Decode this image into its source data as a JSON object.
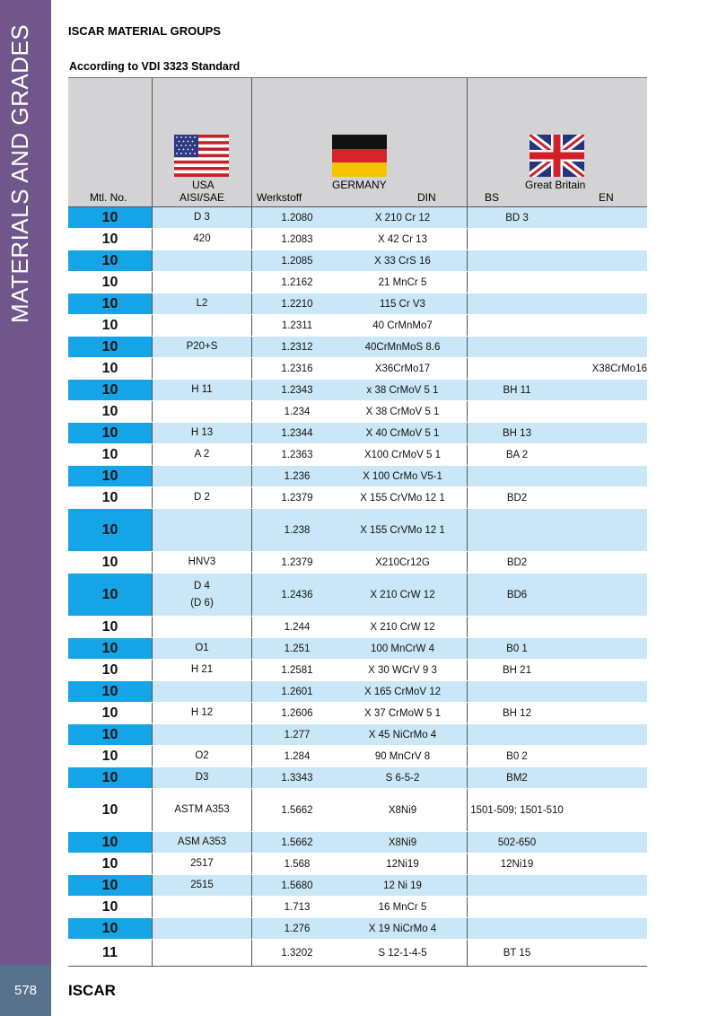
{
  "sidebar": {
    "title": "MATERIALS AND GRADES"
  },
  "page_number": "578",
  "footer_brand": "ISCAR",
  "heading": "ISCAR MATERIAL GROUPS",
  "subheading": "According to VDI 3323 Standard",
  "header": {
    "mtl": "Mtl. No.",
    "usa_country": "USA",
    "usa_std": "AISI/SAE",
    "germany_country": "GERMANY",
    "werkstoff": "Werkstoff",
    "din": "DIN",
    "gb_country": "Great Britain",
    "bs": "BS",
    "en": "EN"
  },
  "flags": {
    "usa": "us-flag-icon",
    "germany": "germany-flag-icon",
    "gb": "gb-flag-icon"
  },
  "colors": {
    "mtl_blue": "#15a4e6",
    "row_blue": "#c9e7f6",
    "header_gray": "#d3d3d5",
    "sidebar": "#70568b"
  },
  "rows": [
    {
      "mtl": "10",
      "usa": "D 3",
      "usa2": "",
      "werkstoff": "1.2080",
      "din": "X 210 Cr 12",
      "bs": "BD 3",
      "en": ""
    },
    {
      "mtl": "10",
      "usa": "420",
      "usa2": "",
      "werkstoff": "1.2083",
      "din": "X 42 Cr 13",
      "bs": "",
      "en": ""
    },
    {
      "mtl": "10",
      "usa": "",
      "usa2": "",
      "werkstoff": "1.2085",
      "din": "X 33 CrS 16",
      "bs": "",
      "en": ""
    },
    {
      "mtl": "10",
      "usa": "",
      "usa2": "",
      "werkstoff": "1.2162",
      "din": "21 MnCr 5",
      "bs": "",
      "en": ""
    },
    {
      "mtl": "10",
      "usa": "L2",
      "usa2": "",
      "werkstoff": "1.2210",
      "din": "115 Cr V3",
      "bs": "",
      "en": ""
    },
    {
      "mtl": "10",
      "usa": "",
      "usa2": "",
      "werkstoff": "1.2311",
      "din": "40 CrMnMo7",
      "bs": "",
      "en": ""
    },
    {
      "mtl": "10",
      "usa": "P20+S",
      "usa2": "",
      "werkstoff": "1.2312",
      "din": "40CrMnMoS 8.6",
      "bs": "",
      "en": ""
    },
    {
      "mtl": "10",
      "usa": "",
      "usa2": "",
      "werkstoff": "1.2316",
      "din": "X36CrMo17",
      "bs": "",
      "en": "X38CrMo16"
    },
    {
      "mtl": "10",
      "usa": "H 11",
      "usa2": "",
      "werkstoff": "1.2343",
      "din": "x 38 CrMoV 5 1",
      "bs": "BH 11",
      "en": ""
    },
    {
      "mtl": "10",
      "usa": "",
      "usa2": "",
      "werkstoff": "1.234",
      "din": "X 38 CrMoV 5 1",
      "bs": "",
      "en": ""
    },
    {
      "mtl": "10",
      "usa": "H 13",
      "usa2": "",
      "werkstoff": "1.2344",
      "din": "X 40 CrMoV 5 1",
      "bs": "BH 13",
      "en": ""
    },
    {
      "mtl": "10",
      "usa": "A 2",
      "usa2": "",
      "werkstoff": "1.2363",
      "din": "X100 CrMoV 5 1",
      "bs": "BA 2",
      "en": ""
    },
    {
      "mtl": "10",
      "usa": "",
      "usa2": "",
      "werkstoff": "1.236",
      "din": "X 100 CrMo V5-1",
      "bs": "",
      "en": ""
    },
    {
      "mtl": "10",
      "usa": "D 2",
      "usa2": "",
      "werkstoff": "1.2379",
      "din": "X 155 CrVMo 12 1",
      "bs": "BD2",
      "en": ""
    },
    {
      "mtl": "10",
      "usa": "",
      "usa2": "",
      "werkstoff": "1.238",
      "din": "X 155 CrVMo 12 1",
      "bs": "",
      "en": ""
    },
    {
      "mtl": "10",
      "usa": "HNV3",
      "usa2": "",
      "werkstoff": "1.2379",
      "din": "X210Cr12G",
      "bs": "BD2",
      "en": ""
    },
    {
      "mtl": "10",
      "usa": "D 4",
      "usa2": "(D 6)",
      "werkstoff": "1.2436",
      "din": "X 210  CrW  12",
      "bs": "BD6",
      "en": ""
    },
    {
      "mtl": "10",
      "usa": "",
      "usa2": "",
      "werkstoff": "1.244",
      "din": "X 210  CrW  12",
      "bs": "",
      "en": ""
    },
    {
      "mtl": "10",
      "usa": "O1",
      "usa2": "",
      "werkstoff": "1.251",
      "din": "100 MnCrW 4",
      "bs": "B0 1",
      "en": ""
    },
    {
      "mtl": "10",
      "usa": "H 21",
      "usa2": "",
      "werkstoff": "1.2581",
      "din": "X 30 WCrV 9  3",
      "bs": "BH 21",
      "en": ""
    },
    {
      "mtl": "10",
      "usa": "",
      "usa2": "",
      "werkstoff": "1.2601",
      "din": "X 165 CrMoV 12",
      "bs": "",
      "en": ""
    },
    {
      "mtl": "10",
      "usa": "H 12",
      "usa2": "",
      "werkstoff": "1.2606",
      "din": "X 37 CrMoW 5 1",
      "bs": "BH 12",
      "en": ""
    },
    {
      "mtl": "10",
      "usa": "",
      "usa2": "",
      "werkstoff": "1.277",
      "din": "X 45 NiCrMo 4",
      "bs": "",
      "en": ""
    },
    {
      "mtl": "10",
      "usa": "O2",
      "usa2": "",
      "werkstoff": "1.284",
      "din": "90 MnCrV 8",
      "bs": "B0 2",
      "en": ""
    },
    {
      "mtl": "10",
      "usa": "D3",
      "usa2": "",
      "werkstoff": "1.3343",
      "din": "S 6-5-2",
      "bs": "BM2",
      "en": ""
    },
    {
      "mtl": "10",
      "usa": "ASTM A353",
      "usa2": "",
      "werkstoff": "1.5662",
      "din": "X8Ni9",
      "bs": "1501-509; 1501-510",
      "en": ""
    },
    {
      "mtl": "10",
      "usa": "ASM A353",
      "usa2": "",
      "werkstoff": "1.5662",
      "din": "X8Ni9",
      "bs": "502-650",
      "en": ""
    },
    {
      "mtl": "10",
      "usa": "2517",
      "usa2": "",
      "werkstoff": "1.568",
      "din": "12Ni19",
      "bs": "12Ni19",
      "en": ""
    },
    {
      "mtl": "10",
      "usa": "2515",
      "usa2": "",
      "werkstoff": "1.5680",
      "din": "12 Ni 19",
      "bs": "",
      "en": ""
    },
    {
      "mtl": "10",
      "usa": "",
      "usa2": "",
      "werkstoff": "1.713",
      "din": "16 MnCr 5",
      "bs": "",
      "en": ""
    },
    {
      "mtl": "10",
      "usa": "",
      "usa2": "",
      "werkstoff": "1.276",
      "din": "X 19 NiCrMo 4",
      "bs": "",
      "en": ""
    },
    {
      "mtl": "11",
      "usa": "",
      "usa2": "",
      "werkstoff": "1.3202",
      "din": "S 12-1-4-5",
      "bs": "BT 15",
      "en": ""
    }
  ]
}
